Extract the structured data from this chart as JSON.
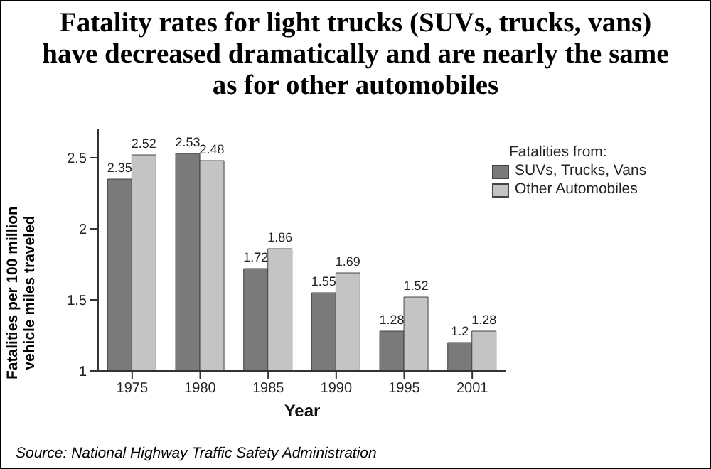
{
  "chart_data": {
    "type": "bar",
    "title": "Fatality rates for light trucks (SUVs, trucks, vans) have decreased dramatically and are nearly the same as for other automobiles",
    "xlabel": "Year",
    "ylabel": "Fatalities per 100 million vehicle miles traveled",
    "legend_title": "Fatalities from:",
    "categories": [
      "1975",
      "1980",
      "1985",
      "1990",
      "1995",
      "2001"
    ],
    "series": [
      {
        "name": "SUVs, Trucks, Vans",
        "color": "#7a7a7a",
        "values": [
          2.35,
          2.53,
          1.72,
          1.55,
          1.28,
          1.2
        ]
      },
      {
        "name": "Other Automobiles",
        "color": "#c4c4c4",
        "values": [
          2.52,
          2.48,
          1.86,
          1.69,
          1.52,
          1.28
        ]
      }
    ],
    "ylim": [
      1,
      2.7
    ],
    "yticks": [
      1,
      1.5,
      2,
      2.5
    ],
    "data_labels": true,
    "legend": "top right",
    "grid": false,
    "annotations": [
      "Source: National Highway Traffic Safety Administration"
    ]
  }
}
